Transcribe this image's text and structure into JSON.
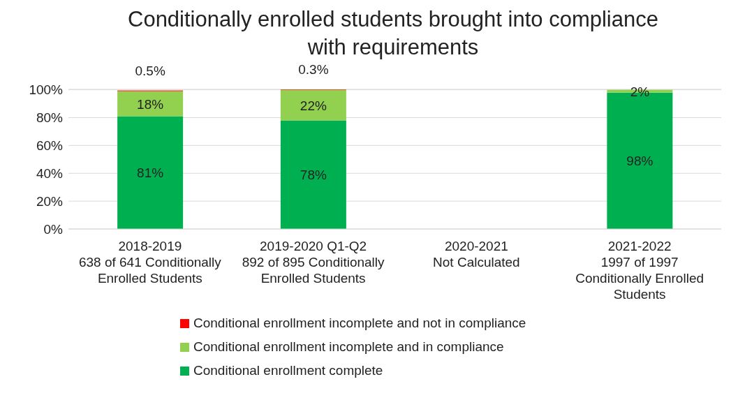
{
  "chart_data": {
    "type": "bar",
    "title": "Conditionally enrolled students brought into compliance with requirements",
    "stacked": true,
    "categories": [
      "2018-2019\n638 of 641 Conditionally\nEnrolled Students",
      "2019-2020 Q1-Q2\n892 of 895 Conditionally\nEnrolled Students",
      "2020-2021\nNot Calculated",
      "2021-2022\n1997 of 1997\nConditionally Enrolled\nStudents"
    ],
    "series": [
      {
        "name": "Conditional enrollment complete",
        "color": "#00b050",
        "values": [
          81,
          78,
          null,
          98
        ],
        "value_labels": [
          "81%",
          "78%",
          null,
          "98%"
        ]
      },
      {
        "name": "Conditional enrollment incomplete and in compliance",
        "color": "#92d050",
        "values": [
          18,
          22,
          null,
          2
        ],
        "value_labels": [
          "18%",
          "22%",
          null,
          "2%"
        ]
      },
      {
        "name": "Conditional enrollment incomplete and not in compliance",
        "color": "#ff0000",
        "values": [
          0.5,
          0.3,
          null,
          null
        ],
        "value_labels": [
          "0.5%",
          "0.3%",
          null,
          null
        ]
      }
    ],
    "ylim": [
      0,
      100
    ],
    "yticks": [
      {
        "value": 0,
        "label": "0%"
      },
      {
        "value": 20,
        "label": "20%"
      },
      {
        "value": 40,
        "label": "40%"
      },
      {
        "value": 60,
        "label": "60%"
      },
      {
        "value": 80,
        "label": "80%"
      },
      {
        "value": 100,
        "label": "100%"
      }
    ],
    "grid": "y",
    "legend": "bottom"
  }
}
